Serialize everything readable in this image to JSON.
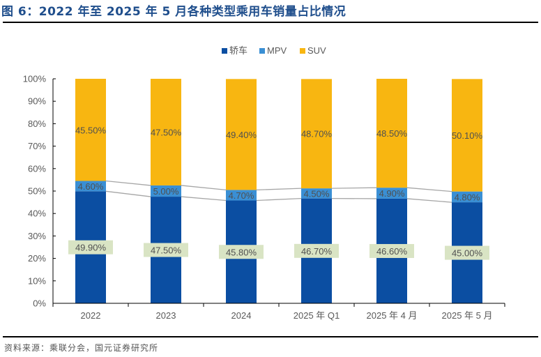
{
  "header": {
    "title": "图 6：2022 年至 2025 年 5 月各种类型乘用车销量占比情况"
  },
  "footer": {
    "source": "资料来源：乘联分会，国元证券研究所"
  },
  "chart_data": {
    "type": "bar",
    "stacked": true,
    "percent_stacked": true,
    "title": "图 6：2022 年至 2025 年 5 月各种类型乘用车销量占比情况",
    "xlabel": "",
    "ylabel": "",
    "ylim": [
      0,
      100
    ],
    "yticks": [
      "0%",
      "10%",
      "20%",
      "30%",
      "40%",
      "50%",
      "60%",
      "70%",
      "80%",
      "90%",
      "100%"
    ],
    "categories": [
      "2022",
      "2023",
      "2024",
      "2025 年 Q1",
      "2025 年 4 月",
      "2025 年 5 月"
    ],
    "legend_position": "top-center",
    "grid": false,
    "series": [
      {
        "name": "轿车",
        "color": "#0b4ea2",
        "values": [
          49.9,
          47.5,
          45.8,
          46.7,
          46.6,
          45.0
        ],
        "labels": [
          "49.90%",
          "47.50%",
          "45.80%",
          "46.70%",
          "46.60%",
          "45.00%"
        ],
        "label_box_color": "#d9e4c4"
      },
      {
        "name": "MPV",
        "color": "#3a8fd4",
        "values": [
          4.6,
          5.0,
          4.7,
          4.5,
          4.9,
          4.8
        ],
        "labels": [
          "4.60%",
          "5.00%",
          "4.70%",
          "4.50%",
          "4.90%",
          "4.80%"
        ]
      },
      {
        "name": "SUV",
        "color": "#f8b611",
        "values": [
          45.5,
          47.5,
          49.4,
          48.7,
          48.5,
          50.1
        ],
        "labels": [
          "45.50%",
          "47.50%",
          "49.40%",
          "48.70%",
          "48.50%",
          "50.10%"
        ]
      }
    ],
    "series_lines": true,
    "series_line_color": "#a6a6a6"
  }
}
